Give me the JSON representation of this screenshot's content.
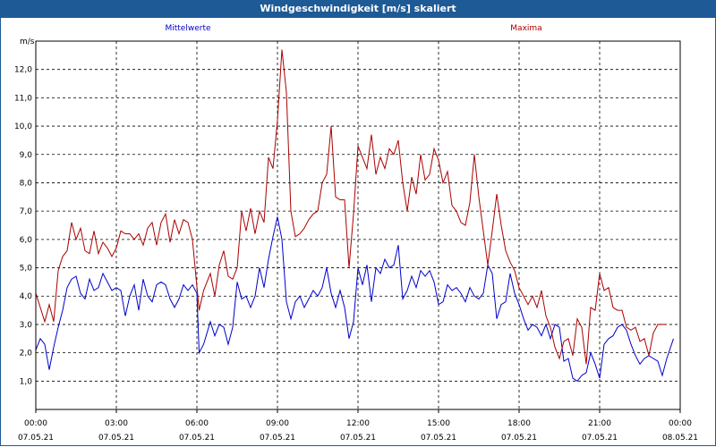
{
  "window": {
    "title": "Windgeschwindigkeit [m/s] skaliert"
  },
  "chart_data": {
    "type": "line",
    "ylabel": "m/s",
    "ylim": [
      0.0,
      13.0
    ],
    "xlim": [
      "00:00",
      "24:00"
    ],
    "grid": true,
    "y_ticks": [
      "1,0",
      "2,0",
      "3,0",
      "4,0",
      "5,0",
      "6,0",
      "7,0",
      "8,0",
      "9,0",
      "10,0",
      "11,0",
      "12,0"
    ],
    "x_ticks": [
      {
        "time": "00:00",
        "date": "07.05.21"
      },
      {
        "time": "03:00",
        "date": "07.05.21"
      },
      {
        "time": "06:00",
        "date": "07.05.21"
      },
      {
        "time": "09:00",
        "date": "07.05.21"
      },
      {
        "time": "12:00",
        "date": "07.05.21"
      },
      {
        "time": "15:00",
        "date": "07.05.21"
      },
      {
        "time": "18:00",
        "date": "07.05.21"
      },
      {
        "time": "21:00",
        "date": "07.05.21"
      },
      {
        "time": "00:00",
        "date": "08.05.21"
      }
    ],
    "series": [
      {
        "name": "Mittelwerte",
        "color": "#0000cc",
        "points": [
          [
            "00:00",
            2.1
          ],
          [
            "00:10",
            2.5
          ],
          [
            "00:20",
            2.3
          ],
          [
            "00:30",
            1.4
          ],
          [
            "00:40",
            2.2
          ],
          [
            "00:50",
            2.9
          ],
          [
            "01:00",
            3.5
          ],
          [
            "01:10",
            4.3
          ],
          [
            "01:20",
            4.6
          ],
          [
            "01:30",
            4.7
          ],
          [
            "01:40",
            4.1
          ],
          [
            "01:50",
            3.9
          ],
          [
            "02:00",
            4.6
          ],
          [
            "02:10",
            4.2
          ],
          [
            "02:20",
            4.3
          ],
          [
            "02:30",
            4.8
          ],
          [
            "02:40",
            4.5
          ],
          [
            "02:50",
            4.2
          ],
          [
            "03:00",
            4.3
          ],
          [
            "03:10",
            4.2
          ],
          [
            "03:20",
            3.3
          ],
          [
            "03:30",
            4.0
          ],
          [
            "03:40",
            4.4
          ],
          [
            "03:50",
            3.5
          ],
          [
            "04:00",
            4.6
          ],
          [
            "04:10",
            4.0
          ],
          [
            "04:20",
            3.8
          ],
          [
            "04:30",
            4.4
          ],
          [
            "04:40",
            4.5
          ],
          [
            "04:50",
            4.4
          ],
          [
            "05:00",
            3.9
          ],
          [
            "05:10",
            3.6
          ],
          [
            "05:20",
            3.9
          ],
          [
            "05:30",
            4.4
          ],
          [
            "05:40",
            4.2
          ],
          [
            "05:50",
            4.4
          ],
          [
            "06:00",
            4.1
          ],
          [
            "06:05",
            2.0
          ],
          [
            "06:15",
            2.3
          ],
          [
            "06:30",
            3.1
          ],
          [
            "06:40",
            2.6
          ],
          [
            "06:50",
            3.0
          ],
          [
            "07:00",
            2.9
          ],
          [
            "07:10",
            2.3
          ],
          [
            "07:20",
            2.9
          ],
          [
            "07:30",
            4.5
          ],
          [
            "07:40",
            3.9
          ],
          [
            "07:50",
            4.0
          ],
          [
            "08:00",
            3.6
          ],
          [
            "08:10",
            4.0
          ],
          [
            "08:20",
            5.0
          ],
          [
            "08:30",
            4.3
          ],
          [
            "08:40",
            5.3
          ],
          [
            "08:50",
            6.1
          ],
          [
            "09:00",
            6.8
          ],
          [
            "09:10",
            6.0
          ],
          [
            "09:20",
            3.8
          ],
          [
            "09:30",
            3.2
          ],
          [
            "09:40",
            3.8
          ],
          [
            "09:50",
            4.0
          ],
          [
            "10:00",
            3.6
          ],
          [
            "10:10",
            3.9
          ],
          [
            "10:20",
            4.2
          ],
          [
            "10:30",
            4.0
          ],
          [
            "10:40",
            4.3
          ],
          [
            "10:50",
            5.0
          ],
          [
            "11:00",
            4.1
          ],
          [
            "11:10",
            3.6
          ],
          [
            "11:20",
            4.2
          ],
          [
            "11:30",
            3.6
          ],
          [
            "11:40",
            2.5
          ],
          [
            "11:50",
            3.1
          ],
          [
            "12:00",
            5.0
          ],
          [
            "12:10",
            4.4
          ],
          [
            "12:20",
            5.1
          ],
          [
            "12:30",
            3.8
          ],
          [
            "12:40",
            5.0
          ],
          [
            "12:50",
            4.8
          ],
          [
            "13:00",
            5.3
          ],
          [
            "13:10",
            5.0
          ],
          [
            "13:20",
            5.1
          ],
          [
            "13:30",
            5.8
          ],
          [
            "13:40",
            3.9
          ],
          [
            "13:50",
            4.2
          ],
          [
            "14:00",
            4.7
          ],
          [
            "14:10",
            4.3
          ],
          [
            "14:20",
            4.9
          ],
          [
            "14:30",
            4.7
          ],
          [
            "14:40",
            4.9
          ],
          [
            "14:50",
            4.5
          ],
          [
            "15:00",
            3.7
          ],
          [
            "15:10",
            3.8
          ],
          [
            "15:20",
            4.4
          ],
          [
            "15:30",
            4.2
          ],
          [
            "15:40",
            4.3
          ],
          [
            "15:50",
            4.1
          ],
          [
            "16:00",
            3.8
          ],
          [
            "16:10",
            4.3
          ],
          [
            "16:20",
            4.0
          ],
          [
            "16:30",
            3.9
          ],
          [
            "16:40",
            4.1
          ],
          [
            "16:50",
            5.1
          ],
          [
            "17:00",
            4.8
          ],
          [
            "17:10",
            3.2
          ],
          [
            "17:20",
            3.7
          ],
          [
            "17:30",
            3.8
          ],
          [
            "17:40",
            4.8
          ],
          [
            "17:50",
            4.1
          ],
          [
            "18:00",
            3.7
          ],
          [
            "18:10",
            3.2
          ],
          [
            "18:20",
            2.8
          ],
          [
            "18:30",
            3.0
          ],
          [
            "18:40",
            2.9
          ],
          [
            "18:50",
            2.6
          ],
          [
            "19:00",
            3.0
          ],
          [
            "19:10",
            2.5
          ],
          [
            "19:20",
            3.0
          ],
          [
            "19:30",
            2.9
          ],
          [
            "19:40",
            1.7
          ],
          [
            "19:50",
            1.8
          ],
          [
            "20:00",
            1.1
          ],
          [
            "20:10",
            1.0
          ],
          [
            "20:20",
            1.2
          ],
          [
            "20:30",
            1.3
          ],
          [
            "20:40",
            2.0
          ],
          [
            "20:50",
            1.6
          ],
          [
            "21:00",
            1.1
          ],
          [
            "21:10",
            2.3
          ],
          [
            "21:20",
            2.5
          ],
          [
            "21:30",
            2.6
          ],
          [
            "21:40",
            2.9
          ],
          [
            "21:50",
            3.0
          ],
          [
            "22:00",
            2.8
          ],
          [
            "22:10",
            2.3
          ],
          [
            "22:20",
            1.9
          ],
          [
            "22:30",
            1.6
          ],
          [
            "22:40",
            1.8
          ],
          [
            "22:50",
            1.9
          ],
          [
            "23:00",
            1.8
          ],
          [
            "23:10",
            1.7
          ],
          [
            "23:20",
            1.2
          ],
          [
            "23:30",
            1.8
          ],
          [
            "23:45",
            2.5
          ]
        ]
      },
      {
        "name": "Maxima",
        "color": "#aa0000",
        "points": [
          [
            "00:00",
            4.1
          ],
          [
            "00:10",
            3.6
          ],
          [
            "00:20",
            3.1
          ],
          [
            "00:30",
            3.7
          ],
          [
            "00:40",
            3.1
          ],
          [
            "00:50",
            4.9
          ],
          [
            "01:00",
            5.4
          ],
          [
            "01:10",
            5.6
          ],
          [
            "01:20",
            6.6
          ],
          [
            "01:30",
            6.0
          ],
          [
            "01:40",
            6.4
          ],
          [
            "01:50",
            5.6
          ],
          [
            "02:00",
            5.5
          ],
          [
            "02:10",
            6.3
          ],
          [
            "02:20",
            5.5
          ],
          [
            "02:30",
            5.9
          ],
          [
            "02:40",
            5.7
          ],
          [
            "02:50",
            5.4
          ],
          [
            "03:00",
            5.7
          ],
          [
            "03:10",
            6.3
          ],
          [
            "03:20",
            6.2
          ],
          [
            "03:30",
            6.2
          ],
          [
            "03:40",
            6.0
          ],
          [
            "03:50",
            6.2
          ],
          [
            "04:00",
            5.8
          ],
          [
            "04:10",
            6.4
          ],
          [
            "04:20",
            6.6
          ],
          [
            "04:30",
            5.8
          ],
          [
            "04:40",
            6.6
          ],
          [
            "04:50",
            6.9
          ],
          [
            "05:00",
            5.9
          ],
          [
            "05:10",
            6.7
          ],
          [
            "05:20",
            6.2
          ],
          [
            "05:30",
            6.7
          ],
          [
            "05:40",
            6.6
          ],
          [
            "05:50",
            6.0
          ],
          [
            "06:05",
            3.5
          ],
          [
            "06:15",
            4.2
          ],
          [
            "06:30",
            4.8
          ],
          [
            "06:40",
            4.0
          ],
          [
            "06:50",
            5.1
          ],
          [
            "07:00",
            5.6
          ],
          [
            "07:10",
            4.7
          ],
          [
            "07:20",
            4.6
          ],
          [
            "07:30",
            5.0
          ],
          [
            "07:40",
            7.0
          ],
          [
            "07:50",
            6.3
          ],
          [
            "08:00",
            7.1
          ],
          [
            "08:10",
            6.2
          ],
          [
            "08:20",
            7.0
          ],
          [
            "08:30",
            6.6
          ],
          [
            "08:40",
            8.9
          ],
          [
            "08:50",
            8.5
          ],
          [
            "09:00",
            10.2
          ],
          [
            "09:10",
            12.7
          ],
          [
            "09:20",
            11.2
          ],
          [
            "09:30",
            7.0
          ],
          [
            "09:40",
            6.1
          ],
          [
            "09:50",
            6.2
          ],
          [
            "10:00",
            6.4
          ],
          [
            "10:10",
            6.7
          ],
          [
            "10:20",
            6.9
          ],
          [
            "10:30",
            7.0
          ],
          [
            "10:40",
            8.0
          ],
          [
            "10:50",
            8.3
          ],
          [
            "11:00",
            10.0
          ],
          [
            "11:10",
            7.5
          ],
          [
            "11:20",
            7.4
          ],
          [
            "11:30",
            7.4
          ],
          [
            "11:40",
            5.0
          ],
          [
            "11:50",
            6.9
          ],
          [
            "12:00",
            9.3
          ],
          [
            "12:10",
            8.9
          ],
          [
            "12:20",
            8.5
          ],
          [
            "12:30",
            9.7
          ],
          [
            "12:40",
            8.3
          ],
          [
            "12:50",
            8.9
          ],
          [
            "13:00",
            8.5
          ],
          [
            "13:10",
            9.2
          ],
          [
            "13:20",
            9.0
          ],
          [
            "13:30",
            9.5
          ],
          [
            "13:40",
            8.0
          ],
          [
            "13:50",
            7.0
          ],
          [
            "14:00",
            8.2
          ],
          [
            "14:10",
            7.6
          ],
          [
            "14:20",
            9.0
          ],
          [
            "14:30",
            8.1
          ],
          [
            "14:40",
            8.3
          ],
          [
            "14:50",
            9.2
          ],
          [
            "15:00",
            8.8
          ],
          [
            "15:10",
            8.0
          ],
          [
            "15:20",
            8.4
          ],
          [
            "15:30",
            7.2
          ],
          [
            "15:40",
            7.0
          ],
          [
            "15:50",
            6.6
          ],
          [
            "16:00",
            6.5
          ],
          [
            "16:10",
            7.3
          ],
          [
            "16:20",
            9.0
          ],
          [
            "16:30",
            7.5
          ],
          [
            "16:40",
            6.3
          ],
          [
            "16:50",
            5.1
          ],
          [
            "17:00",
            6.3
          ],
          [
            "17:10",
            7.6
          ],
          [
            "17:20",
            6.5
          ],
          [
            "17:30",
            5.6
          ],
          [
            "17:40",
            5.2
          ],
          [
            "17:50",
            4.9
          ],
          [
            "18:00",
            4.3
          ],
          [
            "18:10",
            4.0
          ],
          [
            "18:20",
            3.7
          ],
          [
            "18:30",
            4.0
          ],
          [
            "18:40",
            3.6
          ],
          [
            "18:50",
            4.2
          ],
          [
            "19:00",
            3.3
          ],
          [
            "19:10",
            2.9
          ],
          [
            "19:20",
            2.2
          ],
          [
            "19:30",
            1.8
          ],
          [
            "19:40",
            2.4
          ],
          [
            "19:50",
            2.5
          ],
          [
            "20:00",
            1.9
          ],
          [
            "20:10",
            3.2
          ],
          [
            "20:20",
            2.9
          ],
          [
            "20:30",
            1.6
          ],
          [
            "20:40",
            3.6
          ],
          [
            "20:50",
            3.5
          ],
          [
            "21:00",
            4.8
          ],
          [
            "21:10",
            4.2
          ],
          [
            "21:20",
            4.3
          ],
          [
            "21:30",
            3.6
          ],
          [
            "21:40",
            3.5
          ],
          [
            "21:50",
            3.5
          ],
          [
            "22:00",
            2.9
          ],
          [
            "22:10",
            2.8
          ],
          [
            "22:20",
            2.9
          ],
          [
            "22:30",
            2.4
          ],
          [
            "22:40",
            2.5
          ],
          [
            "22:50",
            1.9
          ],
          [
            "23:00",
            2.7
          ],
          [
            "23:10",
            3.0
          ],
          [
            "23:30",
            3.0
          ]
        ]
      }
    ]
  }
}
